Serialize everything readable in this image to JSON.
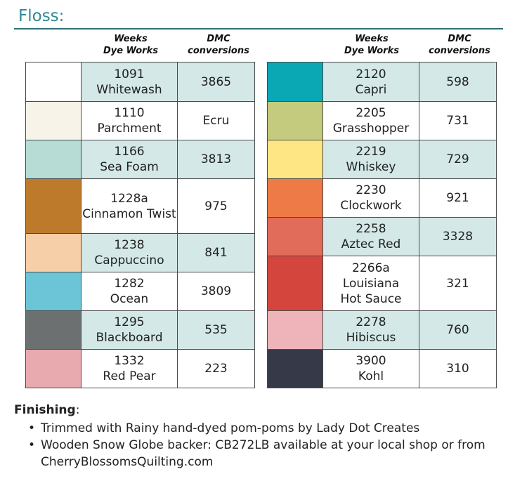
{
  "section_title": "Floss:",
  "headers": {
    "weeks_line1": "Weeks",
    "weeks_line2": "Dye Works",
    "dmc_line1": "DMC",
    "dmc_line2": "conversions"
  },
  "left_rows": [
    {
      "number": "1091",
      "name": "Whitewash",
      "dmc": "3865",
      "color": "#ffffff",
      "tint": true
    },
    {
      "number": "1110",
      "name": "Parchment",
      "dmc": "Ecru",
      "color": "#f7f3e8",
      "tint": false
    },
    {
      "number": "1166",
      "name": "Sea Foam",
      "dmc": "3813",
      "color": "#b6dcd5",
      "tint": true
    },
    {
      "number": "1228a",
      "name": "Cinnamon Twist",
      "dmc": "975",
      "color": "#bd7a2b",
      "tint": false
    },
    {
      "number": "1238",
      "name": "Cappuccino",
      "dmc": "841",
      "color": "#f6cfa8",
      "tint": true
    },
    {
      "number": "1282",
      "name": "Ocean",
      "dmc": "3809",
      "color": "#6bc5d7",
      "tint": false
    },
    {
      "number": "1295",
      "name": "Blackboard",
      "dmc": "535",
      "color": "#6c7070",
      "tint": true
    },
    {
      "number": "1332",
      "name": "Red Pear",
      "dmc": "223",
      "color": "#e8aaaf",
      "tint": false
    }
  ],
  "right_rows": [
    {
      "number": "2120",
      "name": "Capri",
      "dmc": "598",
      "color": "#0aa7b5",
      "tint": true
    },
    {
      "number": "2205",
      "name": "Grasshopper",
      "dmc": "731",
      "color": "#c5cb7e",
      "tint": false
    },
    {
      "number": "2219",
      "name": "Whiskey",
      "dmc": "729",
      "color": "#fde683",
      "tint": true
    },
    {
      "number": "2230",
      "name": "Clockwork",
      "dmc": "921",
      "color": "#ed7a47",
      "tint": false
    },
    {
      "number": "2258",
      "name": "Aztec Red",
      "dmc": "3328",
      "color": "#e26c5a",
      "tint": true
    },
    {
      "number": "2266a",
      "name": "Louisiana Hot Sauce",
      "dmc": "321",
      "color": "#d4463d",
      "tint": false
    },
    {
      "number": "2278",
      "name": "Hibiscus",
      "dmc": "760",
      "color": "#efb4ba",
      "tint": true
    },
    {
      "number": "3900",
      "name": "Kohl",
      "dmc": "310",
      "color": "#363a48",
      "tint": false
    }
  ],
  "finishing": {
    "heading": "Finishing",
    "colon": ":",
    "bullet": "•",
    "items": [
      "Trimmed with Rainy hand-dyed pom-poms by Lady Dot Creates",
      "Wooden Snow Globe backer: CB272LB available at your local shop or from CherryBlossomsQuilting.com"
    ]
  }
}
